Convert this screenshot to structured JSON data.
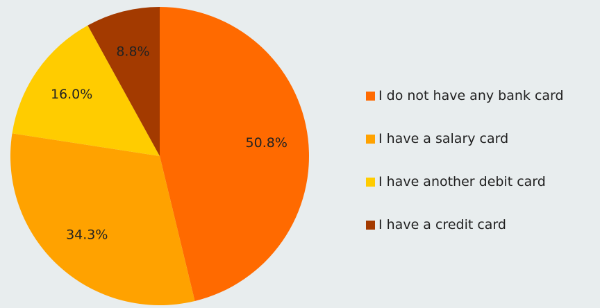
{
  "chart_data": {
    "type": "pie",
    "title": "",
    "categories": [
      "I do not have any bank card",
      "I have a salary card",
      "I have another debit card",
      "I have a credit card"
    ],
    "values": [
      50.8,
      34.3,
      16.0,
      8.8
    ],
    "labels": [
      "50.8%",
      "34.3%",
      "16.0%",
      "8.8%"
    ],
    "colors": [
      "#ff6a00",
      "#ffa200",
      "#ffcc00",
      "#a33a00"
    ],
    "start_angle_deg": 0,
    "direction": "clockwise",
    "legend_position": "right"
  }
}
